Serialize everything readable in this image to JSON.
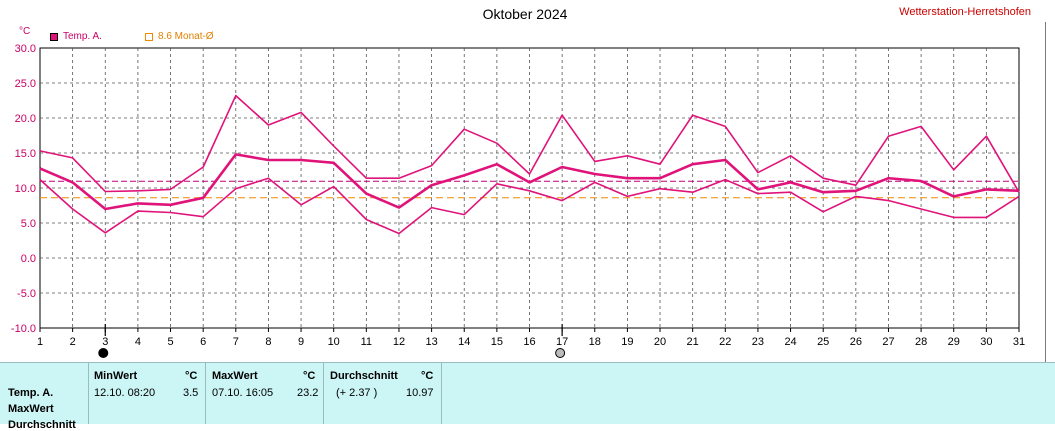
{
  "station_label": "Wetterstation-Herretshofen",
  "unit_label": "°C",
  "legend": [
    {
      "label": "Temp. A.",
      "color": "#e0137a",
      "filled": true
    },
    {
      "label": "8.6 Monat-Ø",
      "color": "#f08a00",
      "filled": false
    }
  ],
  "chart_data": {
    "type": "line",
    "title": "Oktober 2024",
    "x": [
      1,
      2,
      3,
      4,
      5,
      6,
      7,
      8,
      9,
      10,
      11,
      12,
      13,
      14,
      15,
      16,
      17,
      18,
      19,
      20,
      21,
      22,
      23,
      24,
      25,
      26,
      27,
      28,
      29,
      30,
      31
    ],
    "ylim": [
      -10,
      30
    ],
    "yticks": [
      "30.0",
      "25.0",
      "20.0",
      "15.0",
      "10.0",
      "5.0",
      "0.0",
      "-5.0",
      "-10.0"
    ],
    "grid": true,
    "series": [
      {
        "name": "Temp. A.",
        "color": "#e0137a",
        "width": 2.6,
        "values": [
          12.8,
          10.8,
          7.0,
          7.8,
          7.6,
          8.6,
          14.8,
          14.0,
          14.0,
          13.6,
          9.2,
          7.2,
          10.4,
          11.8,
          13.4,
          10.8,
          13.0,
          12.0,
          11.4,
          11.4,
          13.4,
          14.0,
          9.8,
          10.8,
          9.4,
          9.6,
          11.4,
          11.0,
          8.8,
          9.8,
          9.6
        ]
      },
      {
        "color": "#e0137a",
        "width": 1.6,
        "values": [
          15.3,
          14.3,
          9.5,
          9.6,
          9.8,
          13.0,
          23.2,
          19.0,
          20.8,
          16.0,
          11.4,
          11.4,
          13.2,
          18.4,
          16.4,
          12.0,
          20.4,
          13.8,
          14.6,
          13.4,
          20.4,
          18.8,
          12.2,
          14.6,
          11.4,
          10.4,
          17.4,
          18.8,
          12.6,
          17.4,
          9.4
        ]
      },
      {
        "color": "#e0137a",
        "width": 1.6,
        "values": [
          11.2,
          7.0,
          3.6,
          6.7,
          6.5,
          5.9,
          9.9,
          11.4,
          7.6,
          10.2,
          5.5,
          3.5,
          7.2,
          6.2,
          10.6,
          9.6,
          8.2,
          10.8,
          8.8,
          9.9,
          9.4,
          11.2,
          9.2,
          9.4,
          6.6,
          8.8,
          8.2,
          7.0,
          5.8,
          5.8,
          8.8
        ]
      }
    ],
    "reference_lines": [
      {
        "label": "Monat-Ø",
        "value": 8.6,
        "color": "#f08a00"
      },
      {
        "label": "",
        "value": 10.97,
        "color": "#c0007a"
      }
    ],
    "moon_markers": [
      {
        "day": 3,
        "phase": "new"
      },
      {
        "day": 17,
        "phase": "full"
      }
    ]
  },
  "table": {
    "row_labels": [
      "Temp. A.",
      "MaxWert",
      "Durchschnitt"
    ],
    "min": {
      "header": "MinWert",
      "unit": "°C",
      "datetime": "12.10.  08:20",
      "value": "3.5"
    },
    "max": {
      "header": "MaxWert",
      "unit": "°C",
      "datetime": "07.10.  16:05",
      "value": "23.2"
    },
    "avg": {
      "header": "Durchschnitt",
      "unit": "°C",
      "delta": "(+ 2.37 )",
      "value": "10.97"
    }
  }
}
